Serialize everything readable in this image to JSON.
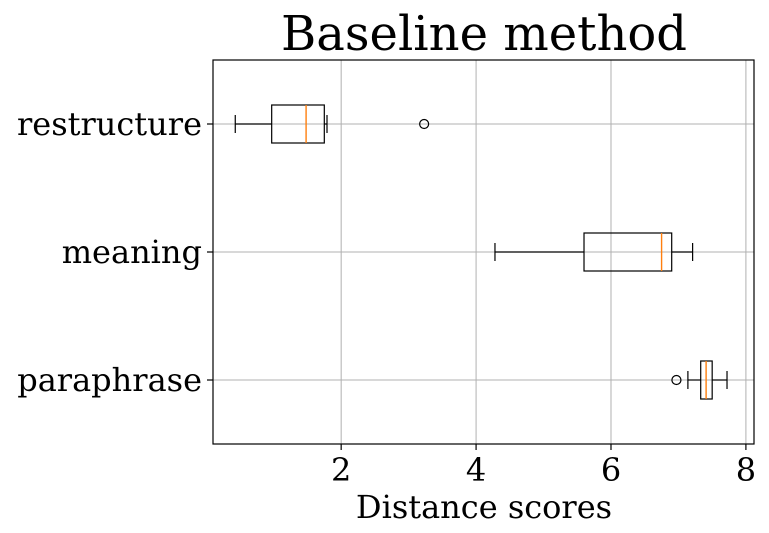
{
  "chart_data": {
    "type": "boxplot",
    "orientation": "horizontal",
    "title": "Baseline method",
    "xlabel": "Distance scores",
    "ylabel": "",
    "xlim": [
      0.1,
      8.12
    ],
    "xticks": [
      2,
      4,
      6,
      8
    ],
    "grid": true,
    "categories": [
      "paraphrase",
      "meaning",
      "restructure"
    ],
    "boxes": [
      {
        "label": "paraphrase",
        "whisker_low": 7.14,
        "q1": 7.33,
        "median": 7.41,
        "q3": 7.5,
        "whisker_high": 7.72,
        "outliers": [
          6.97
        ]
      },
      {
        "label": "meaning",
        "whisker_low": 4.28,
        "q1": 5.6,
        "median": 6.75,
        "q3": 6.9,
        "whisker_high": 7.21,
        "outliers": []
      },
      {
        "label": "restructure",
        "whisker_low": 0.43,
        "q1": 0.97,
        "median": 1.48,
        "q3": 1.75,
        "whisker_high": 1.79,
        "outliers": [
          3.23
        ]
      }
    ],
    "colors": {
      "box": "#000000",
      "median": "#ff7f0e",
      "grid": "#b0b0b0"
    }
  }
}
